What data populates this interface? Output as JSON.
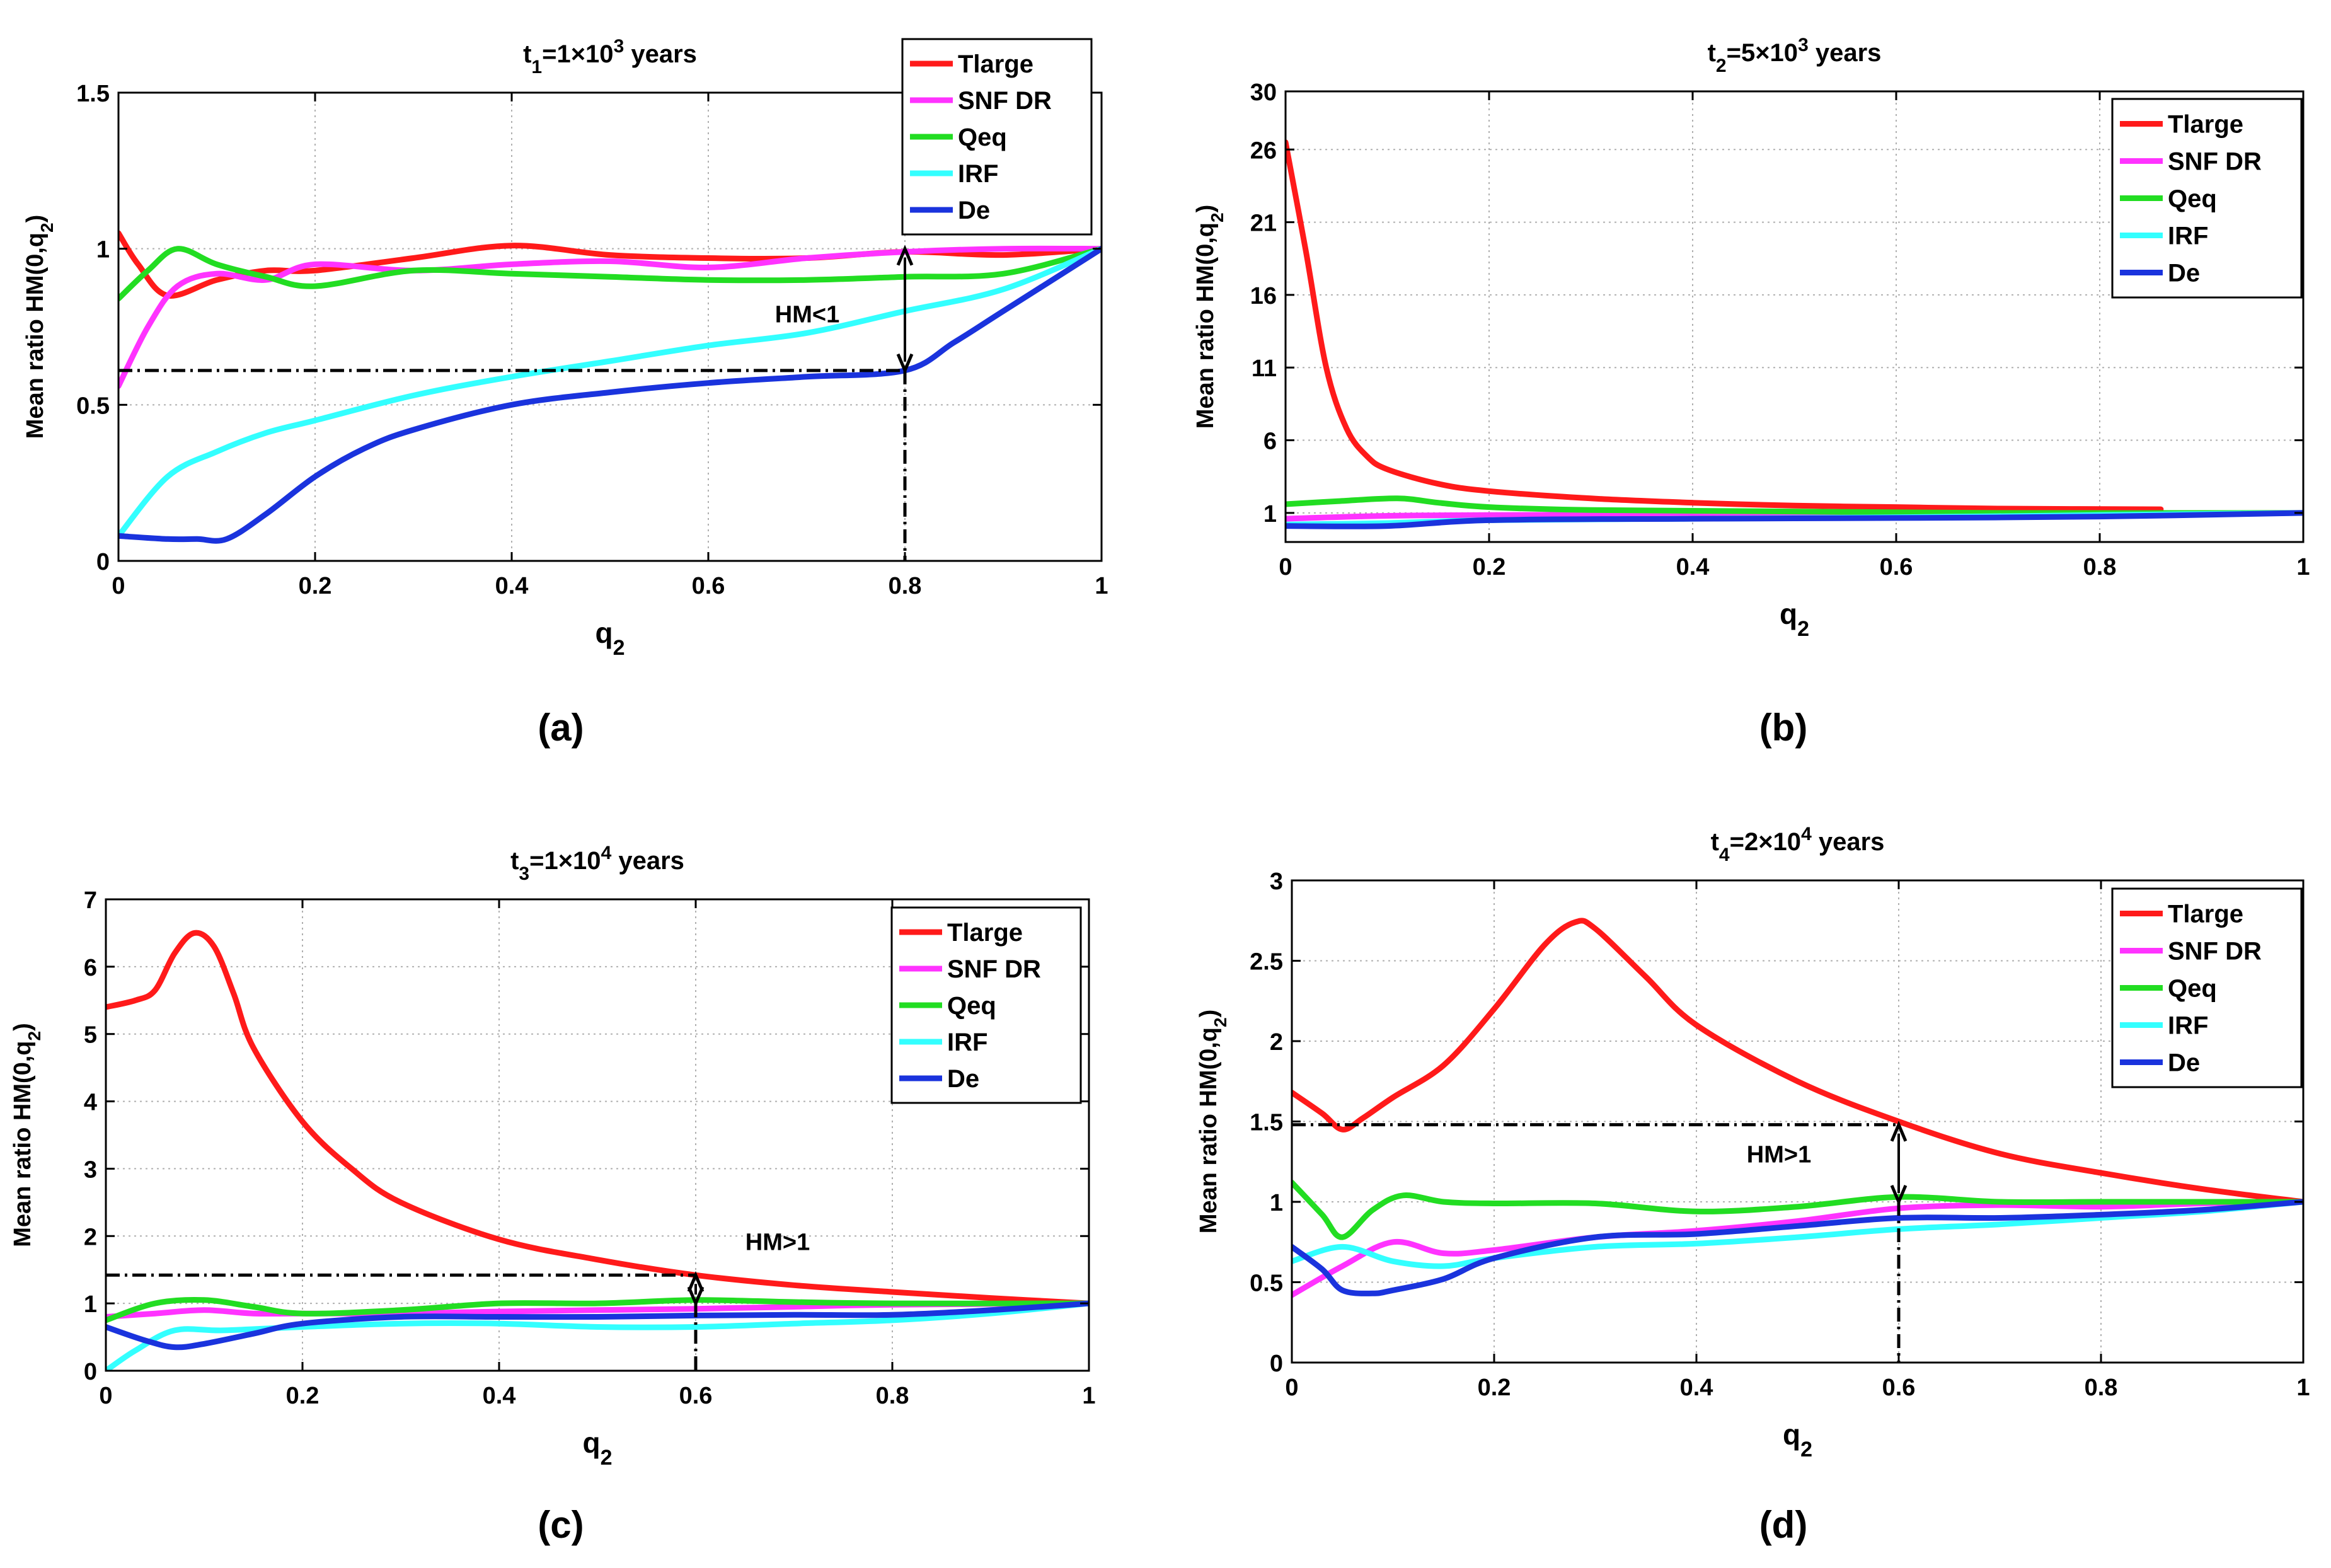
{
  "figure_title": "Mean ratio HM(0,q2) versus q2 at four time points",
  "colors": {
    "Tlarge": "#ff1a1a",
    "SNF DR": "#ff33ff",
    "Qeq": "#22dd22",
    "IRF": "#33ffff",
    "De": "#1a33dd"
  },
  "chart_data": [
    {
      "type": "line",
      "panel": "a",
      "caption": "(a)",
      "title": {
        "prefix": "t",
        "sub": "1",
        "mid": "=1×10",
        "sup": "3",
        "suffix": " years"
      },
      "xlabel": {
        "main": "q",
        "sub": "2"
      },
      "ylabel": {
        "main": "Mean ratio HM(0,q",
        "sub": "2",
        "end": ")"
      },
      "xlim": [
        0,
        1
      ],
      "ylim": [
        0,
        1.5
      ],
      "xticks": [
        "0",
        "0.2",
        "0.4",
        "0.6",
        "0.8",
        "1"
      ],
      "xtick_values": [
        0,
        0.2,
        0.4,
        0.6,
        0.8,
        1
      ],
      "yticks": [
        "0",
        "0.5",
        "1",
        "1.5"
      ],
      "ytick_values": [
        0,
        0.5,
        1,
        1.5
      ],
      "grid": true,
      "legend_position": "top-right",
      "annotation": {
        "text": "HM<1",
        "q": 0.8,
        "hm": 0.61,
        "ref": 1.0
      },
      "series": [
        {
          "name": "Tlarge",
          "x": [
            0,
            0.02,
            0.05,
            0.1,
            0.15,
            0.2,
            0.3,
            0.4,
            0.5,
            0.6,
            0.7,
            0.8,
            0.9,
            1.0
          ],
          "values": [
            1.05,
            0.95,
            0.85,
            0.9,
            0.93,
            0.93,
            0.97,
            1.01,
            0.98,
            0.97,
            0.97,
            0.99,
            0.98,
            1.0
          ]
        },
        {
          "name": "SNF DR",
          "x": [
            0,
            0.03,
            0.06,
            0.1,
            0.15,
            0.2,
            0.3,
            0.4,
            0.5,
            0.6,
            0.7,
            0.8,
            0.9,
            1.0
          ],
          "values": [
            0.56,
            0.75,
            0.88,
            0.92,
            0.9,
            0.95,
            0.93,
            0.95,
            0.96,
            0.94,
            0.97,
            0.99,
            1.0,
            1.0
          ]
        },
        {
          "name": "Qeq",
          "x": [
            0,
            0.03,
            0.06,
            0.1,
            0.15,
            0.2,
            0.3,
            0.4,
            0.5,
            0.6,
            0.7,
            0.8,
            0.9,
            1.0
          ],
          "values": [
            0.84,
            0.93,
            1.0,
            0.95,
            0.91,
            0.88,
            0.93,
            0.92,
            0.91,
            0.9,
            0.9,
            0.91,
            0.92,
            1.0
          ]
        },
        {
          "name": "IRF",
          "x": [
            0,
            0.05,
            0.1,
            0.15,
            0.2,
            0.3,
            0.4,
            0.5,
            0.6,
            0.7,
            0.8,
            0.9,
            1.0
          ],
          "values": [
            0.08,
            0.27,
            0.35,
            0.41,
            0.45,
            0.53,
            0.59,
            0.64,
            0.69,
            0.73,
            0.8,
            0.87,
            1.0
          ]
        },
        {
          "name": "De",
          "x": [
            0,
            0.05,
            0.08,
            0.11,
            0.15,
            0.2,
            0.25,
            0.3,
            0.4,
            0.5,
            0.6,
            0.7,
            0.8,
            0.85,
            0.9,
            1.0
          ],
          "values": [
            0.08,
            0.07,
            0.07,
            0.07,
            0.15,
            0.27,
            0.36,
            0.42,
            0.5,
            0.54,
            0.57,
            0.59,
            0.61,
            0.7,
            0.8,
            1.0
          ]
        }
      ]
    },
    {
      "type": "line",
      "panel": "b",
      "caption": "(b)",
      "title": {
        "prefix": "t",
        "sub": "2",
        "mid": "=5×10",
        "sup": "3",
        "suffix": " years"
      },
      "xlabel": {
        "main": "q",
        "sub": "2"
      },
      "ylabel": {
        "main": "Mean ratio HM(0,q",
        "sub": "2",
        "end": ")"
      },
      "xlim": [
        0,
        1
      ],
      "ylim": [
        -1,
        30
      ],
      "xticks": [
        "0",
        "0.2",
        "0.4",
        "0.6",
        "0.8",
        "1"
      ],
      "xtick_values": [
        0,
        0.2,
        0.4,
        0.6,
        0.8,
        1
      ],
      "yticks": [
        "1",
        "6",
        "11",
        "16",
        "21",
        "26",
        "30"
      ],
      "ytick_values": [
        1,
        6,
        11,
        16,
        21,
        26,
        30
      ],
      "grid": true,
      "legend_position": "top-right",
      "series": [
        {
          "name": "Tlarge",
          "x": [
            0,
            0.02,
            0.04,
            0.06,
            0.08,
            0.1,
            0.15,
            0.2,
            0.3,
            0.4,
            0.5,
            0.6,
            0.7,
            0.86
          ],
          "values": [
            26.5,
            19,
            11,
            6.8,
            4.9,
            4.0,
            3.0,
            2.5,
            2.0,
            1.7,
            1.5,
            1.4,
            1.3,
            1.25
          ]
        },
        {
          "name": "SNF DR",
          "x": [
            0,
            0.1,
            0.2,
            0.4,
            0.6,
            0.8,
            1.0
          ],
          "values": [
            0.6,
            0.8,
            0.85,
            0.9,
            0.95,
            0.98,
            1.0
          ]
        },
        {
          "name": "Qeq",
          "x": [
            0,
            0.05,
            0.11,
            0.15,
            0.2,
            0.3,
            0.5,
            0.7,
            1.0
          ],
          "values": [
            1.6,
            1.8,
            2.0,
            1.7,
            1.4,
            1.2,
            1.1,
            1.0,
            1.0
          ]
        },
        {
          "name": "IRF",
          "x": [
            0,
            0.1,
            0.2,
            0.4,
            0.6,
            0.8,
            1.0
          ],
          "values": [
            0.2,
            0.3,
            0.5,
            0.6,
            0.7,
            0.85,
            1.0
          ]
        },
        {
          "name": "De",
          "x": [
            0,
            0.1,
            0.2,
            0.4,
            0.6,
            0.8,
            1.0
          ],
          "values": [
            0.1,
            0.1,
            0.5,
            0.6,
            0.65,
            0.75,
            1.0
          ]
        }
      ]
    },
    {
      "type": "line",
      "panel": "c",
      "caption": "(c)",
      "title": {
        "prefix": "t",
        "sub": "3",
        "mid": "=1×10",
        "sup": "4",
        "suffix": " years"
      },
      "xlabel": {
        "main": "q",
        "sub": "2"
      },
      "ylabel": {
        "main": "Mean ratio HM(0,q",
        "sub": "2",
        "end": ")"
      },
      "xlim": [
        0,
        1
      ],
      "ylim": [
        0,
        7
      ],
      "xticks": [
        "0",
        "0.2",
        "0.4",
        "0.6",
        "0.8",
        "1"
      ],
      "xtick_values": [
        0,
        0.2,
        0.4,
        0.6,
        0.8,
        1
      ],
      "yticks": [
        "0",
        "1",
        "2",
        "3",
        "4",
        "5",
        "6",
        "7"
      ],
      "ytick_values": [
        0,
        1,
        2,
        3,
        4,
        5,
        6,
        7
      ],
      "grid": true,
      "legend_position": "top-right",
      "annotation": {
        "text": "HM>1",
        "q": 0.6,
        "hm": 1.42,
        "ref": 1.0
      },
      "series": [
        {
          "name": "Tlarge",
          "x": [
            0,
            0.03,
            0.05,
            0.07,
            0.09,
            0.11,
            0.13,
            0.15,
            0.2,
            0.25,
            0.3,
            0.4,
            0.5,
            0.6,
            0.7,
            0.8,
            0.9,
            1.0
          ],
          "values": [
            5.4,
            5.5,
            5.65,
            6.2,
            6.5,
            6.3,
            5.6,
            4.8,
            3.7,
            3.0,
            2.5,
            1.95,
            1.65,
            1.42,
            1.27,
            1.17,
            1.08,
            1.0
          ]
        },
        {
          "name": "SNF DR",
          "x": [
            0,
            0.05,
            0.1,
            0.15,
            0.2,
            0.3,
            0.4,
            0.5,
            0.6,
            0.7,
            0.8,
            1.0
          ],
          "values": [
            0.8,
            0.85,
            0.9,
            0.85,
            0.85,
            0.85,
            0.88,
            0.9,
            0.92,
            0.95,
            0.98,
            1.0
          ]
        },
        {
          "name": "Qeq",
          "x": [
            0,
            0.05,
            0.1,
            0.15,
            0.2,
            0.3,
            0.4,
            0.5,
            0.6,
            0.7,
            0.8,
            1.0
          ],
          "values": [
            0.75,
            1.0,
            1.05,
            0.95,
            0.85,
            0.9,
            1.0,
            1.0,
            1.05,
            1.02,
            1.0,
            1.0
          ]
        },
        {
          "name": "IRF",
          "x": [
            0,
            0.03,
            0.07,
            0.12,
            0.2,
            0.3,
            0.4,
            0.5,
            0.6,
            0.7,
            0.8,
            0.9,
            1.0
          ],
          "values": [
            0.0,
            0.3,
            0.6,
            0.6,
            0.65,
            0.7,
            0.7,
            0.65,
            0.65,
            0.7,
            0.75,
            0.85,
            1.0
          ]
        },
        {
          "name": "De",
          "x": [
            0,
            0.04,
            0.07,
            0.1,
            0.15,
            0.2,
            0.3,
            0.4,
            0.5,
            0.6,
            0.7,
            0.8,
            0.9,
            1.0
          ],
          "values": [
            0.65,
            0.45,
            0.35,
            0.4,
            0.55,
            0.7,
            0.8,
            0.8,
            0.8,
            0.82,
            0.83,
            0.83,
            0.9,
            1.0
          ]
        }
      ]
    },
    {
      "type": "line",
      "panel": "d",
      "caption": "(d)",
      "title": {
        "prefix": "t",
        "sub": "4",
        "mid": "=2×10",
        "sup": "4",
        "suffix": " years"
      },
      "xlabel": {
        "main": "q",
        "sub": "2"
      },
      "ylabel": {
        "main": "Mean ratio HM(0,q",
        "sub": "2",
        "end": ")"
      },
      "xlim": [
        0,
        1
      ],
      "ylim": [
        0,
        3
      ],
      "xticks": [
        "0",
        "0.2",
        "0.4",
        "0.6",
        "0.8",
        "1"
      ],
      "xtick_values": [
        0,
        0.2,
        0.4,
        0.6,
        0.8,
        1
      ],
      "yticks": [
        "0",
        "0.5",
        "1",
        "1.5",
        "2",
        "2.5",
        "3"
      ],
      "ytick_values": [
        0,
        0.5,
        1,
        1.5,
        2,
        2.5,
        3
      ],
      "grid": true,
      "legend_position": "top-right",
      "annotation": {
        "text": "HM>1",
        "q": 0.6,
        "hm": 1.48,
        "ref": 1.0
      },
      "series": [
        {
          "name": "Tlarge",
          "x": [
            0,
            0.03,
            0.05,
            0.07,
            0.1,
            0.15,
            0.2,
            0.25,
            0.28,
            0.3,
            0.35,
            0.4,
            0.5,
            0.6,
            0.7,
            0.8,
            0.9,
            1.0
          ],
          "values": [
            1.68,
            1.55,
            1.45,
            1.52,
            1.65,
            1.85,
            2.2,
            2.6,
            2.74,
            2.7,
            2.4,
            2.1,
            1.75,
            1.5,
            1.3,
            1.18,
            1.08,
            1.0
          ]
        },
        {
          "name": "SNF DR",
          "x": [
            0,
            0.05,
            0.1,
            0.15,
            0.2,
            0.3,
            0.4,
            0.5,
            0.6,
            0.7,
            0.8,
            0.9,
            1.0
          ],
          "values": [
            0.42,
            0.6,
            0.75,
            0.68,
            0.7,
            0.78,
            0.82,
            0.88,
            0.96,
            0.98,
            0.97,
            0.99,
            1.0
          ]
        },
        {
          "name": "Qeq",
          "x": [
            0,
            0.03,
            0.05,
            0.08,
            0.11,
            0.15,
            0.2,
            0.3,
            0.4,
            0.5,
            0.6,
            0.7,
            0.8,
            1.0
          ],
          "values": [
            1.12,
            0.92,
            0.78,
            0.95,
            1.04,
            1.0,
            0.99,
            0.99,
            0.94,
            0.97,
            1.03,
            1.0,
            1.0,
            1.0
          ]
        },
        {
          "name": "IRF",
          "x": [
            0,
            0.05,
            0.1,
            0.15,
            0.2,
            0.3,
            0.4,
            0.5,
            0.6,
            0.7,
            0.8,
            0.9,
            1.0
          ],
          "values": [
            0.63,
            0.72,
            0.63,
            0.6,
            0.65,
            0.72,
            0.74,
            0.78,
            0.83,
            0.86,
            0.9,
            0.94,
            1.0
          ]
        },
        {
          "name": "De",
          "x": [
            0,
            0.03,
            0.05,
            0.08,
            0.1,
            0.15,
            0.2,
            0.3,
            0.4,
            0.5,
            0.6,
            0.7,
            0.8,
            0.9,
            1.0
          ],
          "values": [
            0.72,
            0.58,
            0.45,
            0.43,
            0.45,
            0.52,
            0.65,
            0.78,
            0.8,
            0.85,
            0.9,
            0.9,
            0.92,
            0.95,
            1.0
          ]
        }
      ]
    }
  ]
}
